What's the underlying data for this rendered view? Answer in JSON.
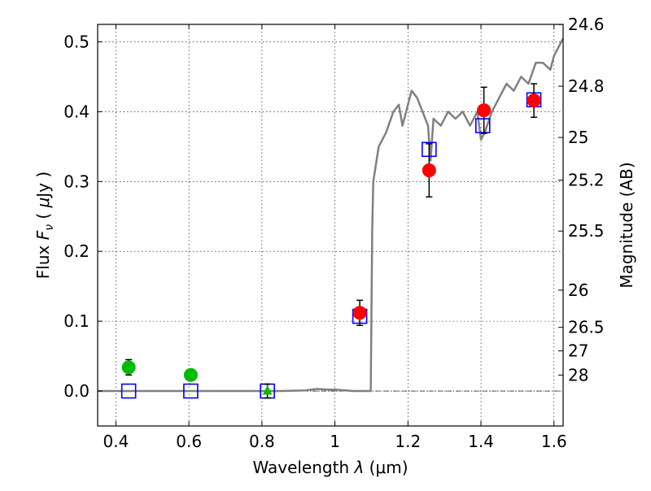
{
  "chart_data": {
    "type": "scatter",
    "title": "",
    "xlabel": "Wavelength  λ (μm)",
    "ylabel": "Flux  F_ν  ( μJy )",
    "ylabel_parts": {
      "pre": "Flux  ",
      "var": "F",
      "sub": "ν",
      "mid": "  ( ",
      "unit_mu": "μ",
      "unit_rest": "Jy )"
    },
    "xlabel_parts": {
      "pre": "Wavelength  ",
      "var": "λ",
      "unit": " (μm)"
    },
    "y2label": "Magnitude (AB)",
    "xlim": [
      0.35,
      1.625
    ],
    "ylim": [
      -0.05,
      0.525
    ],
    "grid": true,
    "xticks": [
      0.4,
      0.6,
      0.8,
      1.0,
      1.2,
      1.4,
      1.6
    ],
    "xtick_labels": [
      "0.4",
      "0.6",
      "0.8",
      "1",
      "1.2",
      "1.4",
      "1.6"
    ],
    "yticks": [
      0.0,
      0.1,
      0.2,
      0.3,
      0.4,
      0.5
    ],
    "ytick_labels": [
      "0.0",
      "0.1",
      "0.2",
      "0.3",
      "0.4",
      "0.5"
    ],
    "y2ticks": [
      {
        "label": "24.6",
        "flux": 0.5248
      },
      {
        "label": "24.8",
        "flux": 0.4365
      },
      {
        "label": "25",
        "flux": 0.3631
      },
      {
        "label": "25.2",
        "flux": 0.302
      },
      {
        "label": "25.5",
        "flux": 0.2291
      },
      {
        "label": "26",
        "flux": 0.1445
      },
      {
        "label": "26.5",
        "flux": 0.0912
      },
      {
        "label": "27",
        "flux": 0.0575
      },
      {
        "label": "28",
        "flux": 0.0229
      }
    ],
    "series": [
      {
        "marker": "line",
        "color": "#808080",
        "x": [
          0.35,
          0.5,
          0.7,
          0.85,
          0.92,
          0.95,
          0.98,
          1.0,
          1.05,
          1.098,
          1.102,
          1.105,
          1.12,
          1.14,
          1.16,
          1.175,
          1.185,
          1.2,
          1.21,
          1.225,
          1.24,
          1.255,
          1.262,
          1.27,
          1.29,
          1.31,
          1.33,
          1.35,
          1.37,
          1.39,
          1.4,
          1.41,
          1.43,
          1.45,
          1.47,
          1.49,
          1.51,
          1.53,
          1.55,
          1.57,
          1.59,
          1.6,
          1.61,
          1.625
        ],
        "y": [
          0.0,
          0.0,
          0.0,
          0.0,
          0.001,
          0.003,
          0.002,
          0.002,
          0.0,
          0.0,
          0.23,
          0.3,
          0.35,
          0.37,
          0.4,
          0.41,
          0.38,
          0.41,
          0.43,
          0.42,
          0.4,
          0.38,
          0.33,
          0.39,
          0.38,
          0.4,
          0.39,
          0.4,
          0.38,
          0.4,
          0.36,
          0.37,
          0.4,
          0.42,
          0.44,
          0.43,
          0.45,
          0.44,
          0.47,
          0.47,
          0.46,
          0.48,
          0.49,
          0.505
        ]
      },
      {
        "marker": "square",
        "color": "#0000ff",
        "x": [
          0.435,
          0.605,
          0.815,
          1.068,
          1.258,
          1.405,
          1.545
        ],
        "y": [
          0.0,
          0.0,
          0.0,
          0.107,
          0.346,
          0.38,
          0.417
        ]
      },
      {
        "marker": "circle",
        "color": "#ff0000",
        "x": [
          1.068,
          1.258,
          1.408,
          1.545
        ],
        "y": [
          0.112,
          0.316,
          0.402,
          0.416
        ],
        "err": [
          0.018,
          0.038,
          0.033,
          0.024
        ]
      },
      {
        "marker": "circle",
        "color": "#00bb00",
        "x": [
          0.435,
          0.605
        ],
        "y": [
          0.034,
          0.023
        ],
        "err": [
          0.011,
          0.008
        ]
      },
      {
        "marker": "triangle",
        "color": "#00bb00",
        "x": [
          0.815
        ],
        "y": [
          0.0
        ],
        "err": [
          0.01
        ]
      }
    ]
  }
}
